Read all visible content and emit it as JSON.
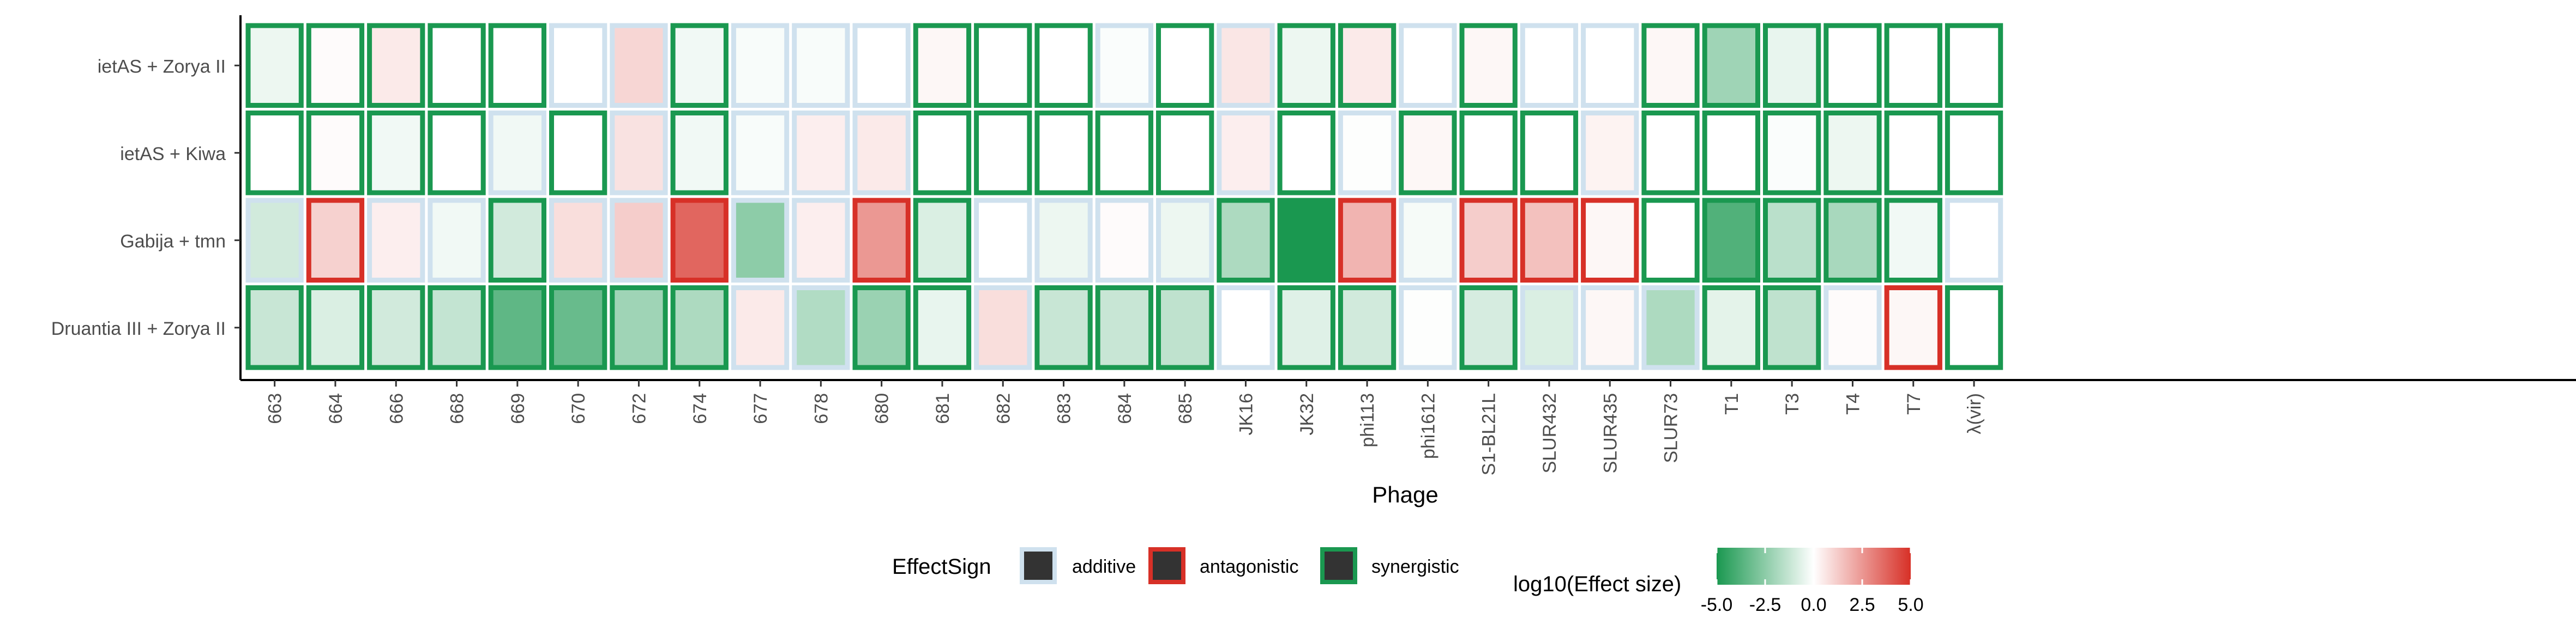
{
  "chart_data": {
    "type": "heatmap",
    "xlabel": "Phage",
    "ylabel": "",
    "rows": [
      "ietAS + Zorya II",
      "ietAS + Kiwa",
      "Gabija + tmn",
      "Druantia III + Zorya II"
    ],
    "columns": [
      "663",
      "664",
      "666",
      "668",
      "669",
      "670",
      "672",
      "674",
      "677",
      "678",
      "680",
      "681",
      "682",
      "683",
      "684",
      "685",
      "JK16",
      "JK32",
      "phi113",
      "phi1612",
      "S1-BL21L",
      "SLUR432",
      "SLUR435",
      "SLUR73",
      "T1",
      "T3",
      "T4",
      "T7",
      "λ(vir)"
    ],
    "values": [
      [
        -0.4,
        0.1,
        0.5,
        0.0,
        0.0,
        0.0,
        1.0,
        -0.3,
        -0.15,
        -0.15,
        0.0,
        0.2,
        0.0,
        0.0,
        -0.1,
        0.0,
        0.6,
        -0.4,
        0.5,
        0.0,
        0.2,
        0.0,
        0.0,
        0.2,
        -2.1,
        -0.5,
        0.0,
        0.0,
        0.0
      ],
      [
        0.0,
        0.1,
        -0.3,
        0.0,
        -0.3,
        0.0,
        0.7,
        -0.3,
        -0.15,
        0.4,
        0.5,
        0.0,
        0.0,
        0.0,
        0.0,
        0.0,
        0.4,
        0.0,
        -0.05,
        0.2,
        0.0,
        0.0,
        0.3,
        0.0,
        0.0,
        -0.1,
        -0.4,
        0.0,
        0.0
      ],
      [
        -1.0,
        1.1,
        0.4,
        -0.3,
        -1.0,
        0.8,
        1.2,
        3.7,
        -2.5,
        0.4,
        2.5,
        -0.8,
        0.0,
        -0.4,
        0.1,
        -0.4,
        -1.8,
        -5.0,
        1.8,
        -0.2,
        1.2,
        1.5,
        0.2,
        0.0,
        -3.8,
        -1.5,
        -1.9,
        -0.3,
        0.0
      ],
      [
        -1.2,
        -0.8,
        -1.0,
        -1.3,
        -3.5,
        -3.3,
        -2.1,
        -1.8,
        0.5,
        -1.7,
        -2.2,
        -0.5,
        0.8,
        -1.2,
        -1.2,
        -1.4,
        0.0,
        -0.7,
        -1.0,
        -0.05,
        -0.9,
        -0.8,
        0.2,
        -1.8,
        -0.6,
        -1.4,
        0.1,
        0.2,
        0.0
      ]
    ],
    "effect_sign": [
      [
        "synergistic",
        "synergistic",
        "synergistic",
        "synergistic",
        "synergistic",
        "additive",
        "additive",
        "synergistic",
        "additive",
        "additive",
        "additive",
        "synergistic",
        "synergistic",
        "synergistic",
        "additive",
        "synergistic",
        "additive",
        "synergistic",
        "synergistic",
        "additive",
        "synergistic",
        "additive",
        "additive",
        "synergistic",
        "synergistic",
        "synergistic",
        "synergistic",
        "synergistic",
        "synergistic"
      ],
      [
        "synergistic",
        "synergistic",
        "synergistic",
        "synergistic",
        "additive",
        "synergistic",
        "additive",
        "synergistic",
        "additive",
        "additive",
        "additive",
        "synergistic",
        "synergistic",
        "synergistic",
        "synergistic",
        "synergistic",
        "additive",
        "synergistic",
        "additive",
        "synergistic",
        "synergistic",
        "synergistic",
        "additive",
        "synergistic",
        "synergistic",
        "synergistic",
        "synergistic",
        "synergistic",
        "synergistic"
      ],
      [
        "additive",
        "antagonistic",
        "additive",
        "additive",
        "synergistic",
        "additive",
        "additive",
        "antagonistic",
        "additive",
        "additive",
        "antagonistic",
        "synergistic",
        "additive",
        "additive",
        "additive",
        "additive",
        "synergistic",
        "synergistic",
        "antagonistic",
        "additive",
        "antagonistic",
        "antagonistic",
        "antagonistic",
        "synergistic",
        "synergistic",
        "synergistic",
        "synergistic",
        "synergistic",
        "additive"
      ],
      [
        "synergistic",
        "synergistic",
        "synergistic",
        "synergistic",
        "synergistic",
        "synergistic",
        "synergistic",
        "synergistic",
        "additive",
        "additive",
        "synergistic",
        "synergistic",
        "additive",
        "synergistic",
        "synergistic",
        "synergistic",
        "additive",
        "synergistic",
        "synergistic",
        "additive",
        "synergistic",
        "additive",
        "additive",
        "additive",
        "synergistic",
        "synergistic",
        "additive",
        "antagonistic",
        "synergistic"
      ]
    ],
    "legend": {
      "effect_sign_title": "EffectSign",
      "effect_sign_entries": [
        "additive",
        "antagonistic",
        "synergistic"
      ],
      "effect_sign_colors": [
        "#cfe1ee",
        "#d73027",
        "#1a9850"
      ],
      "color_title": "log10(Effect size)",
      "color_ticks": [
        "-5.0",
        "-2.5",
        "0.0",
        "2.5",
        "5.0"
      ],
      "color_range": [
        -5,
        5
      ],
      "color_low": "#1a9850",
      "color_mid": "#ffffff",
      "color_high": "#d73027",
      "placement": "bottom"
    },
    "grid": false
  }
}
